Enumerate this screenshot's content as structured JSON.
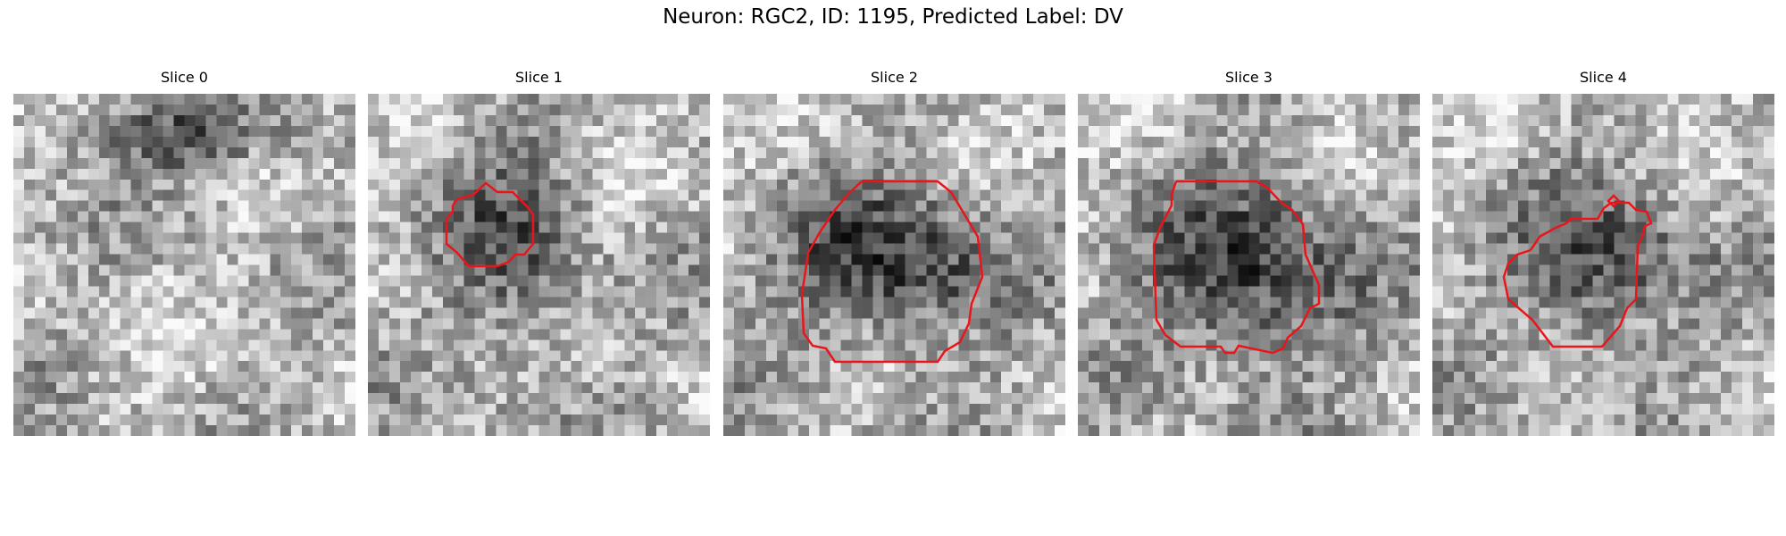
{
  "figure": {
    "title": "Neuron: RGC2, ID: 1195, Predicted Label: DV"
  },
  "contour_color": "#e8161b",
  "panels": [
    {
      "title": "Slice 0"
    },
    {
      "title": "Slice 1"
    },
    {
      "title": "Slice 2"
    },
    {
      "title": "Slice 3"
    },
    {
      "title": "Slice 4"
    }
  ]
}
